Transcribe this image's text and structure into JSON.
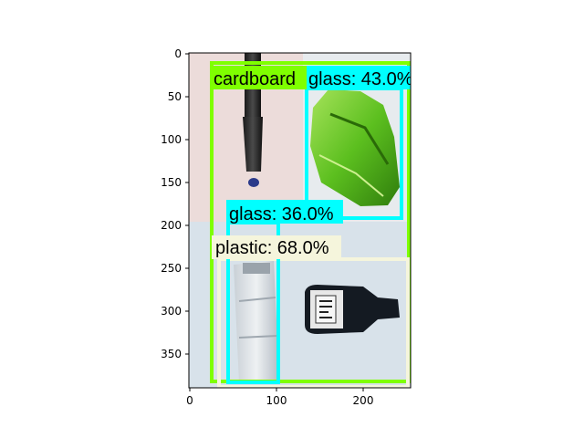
{
  "figure": {
    "x_ticks": [
      "0",
      "100",
      "200"
    ],
    "y_ticks": [
      "0",
      "50",
      "100",
      "150",
      "200",
      "250",
      "300",
      "350"
    ]
  },
  "colors": {
    "cardboard": "#7fff00",
    "glass": "#00ffff",
    "plastic": "#f5f5dc"
  },
  "detections": [
    {
      "class": "plastic",
      "label": "plastic: 68.0%"
    },
    {
      "class": "cardboard",
      "label": "cardboard"
    },
    {
      "class": "glass",
      "label": "glass: 43.0%"
    },
    {
      "class": "glass",
      "label": "glass: 36.0%"
    }
  ],
  "image_content": {
    "background_top": "pink-wall",
    "background_bottom": "light-blue-table",
    "objects": [
      "dark-bottle-neck-icon",
      "green-crushed-glass-icon",
      "clear-plastic-bottle-icon",
      "dark-glass-bottle-icon"
    ]
  }
}
